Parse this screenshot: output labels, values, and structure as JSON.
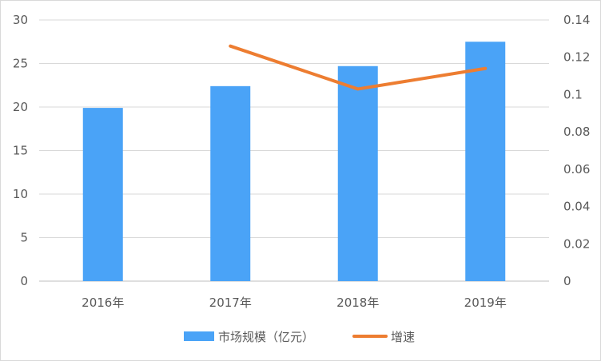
{
  "chart_data": {
    "type": "bar",
    "categories": [
      "2016年",
      "2017年",
      "2018年",
      "2019年"
    ],
    "series": [
      {
        "name": "市场规模（亿元）",
        "type": "bar",
        "axis": "left",
        "color": "#4aa3f7",
        "values": [
          19.9,
          22.4,
          24.7,
          27.5
        ]
      },
      {
        "name": "增速",
        "type": "line",
        "axis": "right",
        "color": "#ed7d31",
        "values": [
          null,
          0.126,
          0.103,
          0.114
        ]
      }
    ],
    "y_left": {
      "min": 0,
      "max": 30,
      "ticks": [
        0,
        5,
        10,
        15,
        20,
        25,
        30
      ],
      "tick_labels": [
        "0",
        "5",
        "10",
        "15",
        "20",
        "25",
        "30"
      ]
    },
    "y_right": {
      "min": 0,
      "max": 0.14,
      "ticks": [
        0,
        0.02,
        0.04,
        0.06,
        0.08,
        0.1,
        0.12,
        0.14
      ],
      "tick_labels": [
        "0",
        "0.02",
        "0.04",
        "0.06",
        "0.08",
        "0.1",
        "0.12",
        "0.14"
      ]
    },
    "grid": true,
    "legend_position": "bottom",
    "title": "",
    "xlabel": "",
    "ylabel": ""
  }
}
